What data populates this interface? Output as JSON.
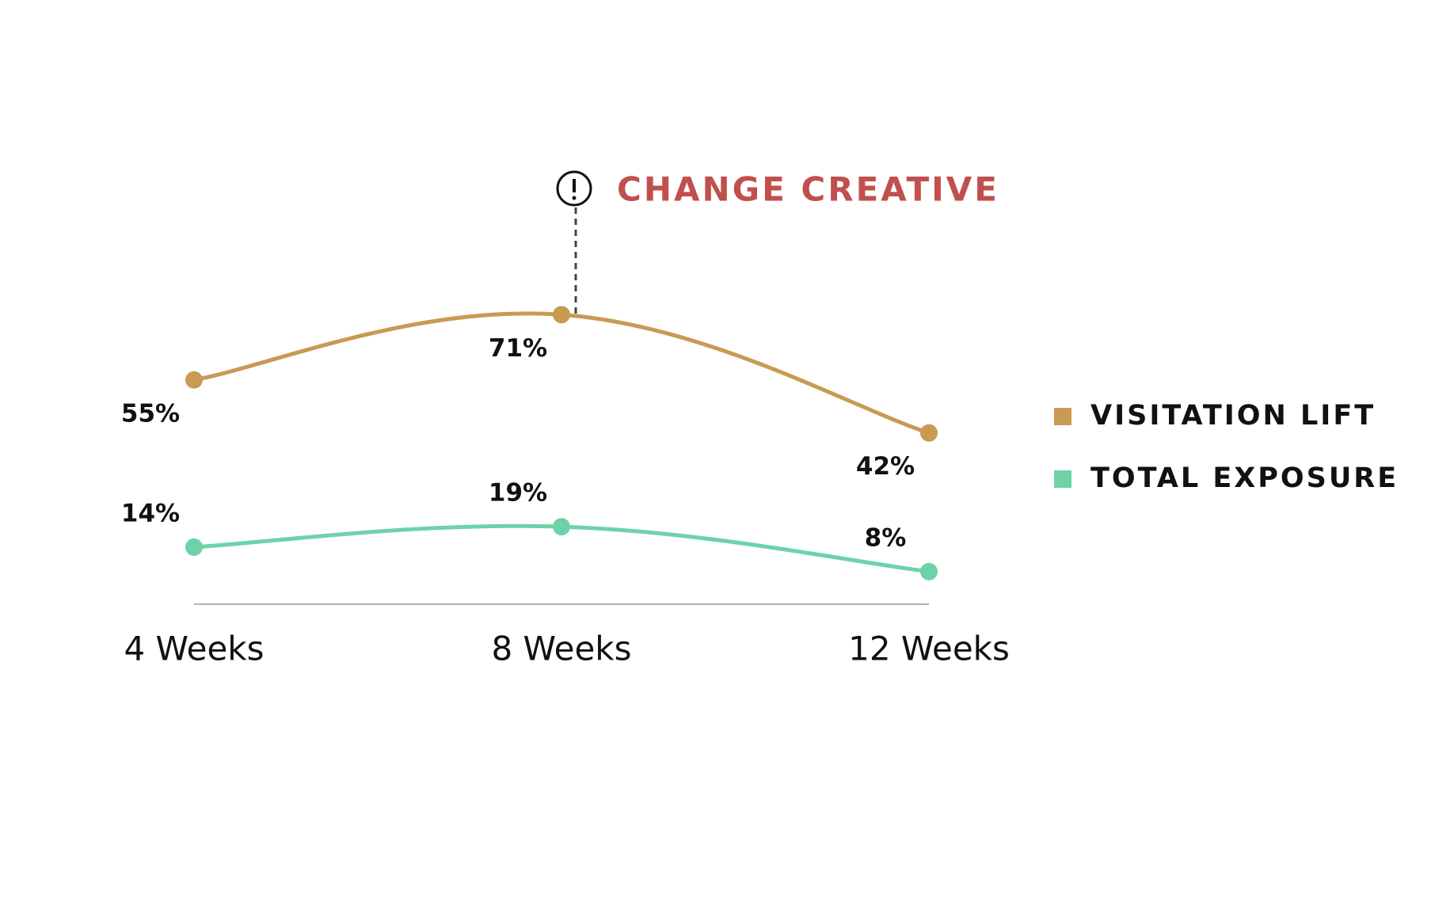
{
  "chart_data": {
    "type": "line",
    "categories": [
      "4 Weeks",
      "8 Weeks",
      "12 Weeks"
    ],
    "series": [
      {
        "name": "VISITATION LIFT",
        "color": "#c89a52",
        "values": [
          55,
          71,
          42
        ],
        "value_labels": [
          "55%",
          "71%",
          "42%"
        ]
      },
      {
        "name": "TOTAL EXPOSURE",
        "color": "#6ed2a9",
        "values": [
          14,
          19,
          8
        ],
        "value_labels": [
          "14%",
          "19%",
          "8%"
        ]
      }
    ],
    "annotation": {
      "text": "CHANGE CREATIVE",
      "category": "8 Weeks",
      "color": "#c0504d"
    },
    "legend": "right"
  }
}
